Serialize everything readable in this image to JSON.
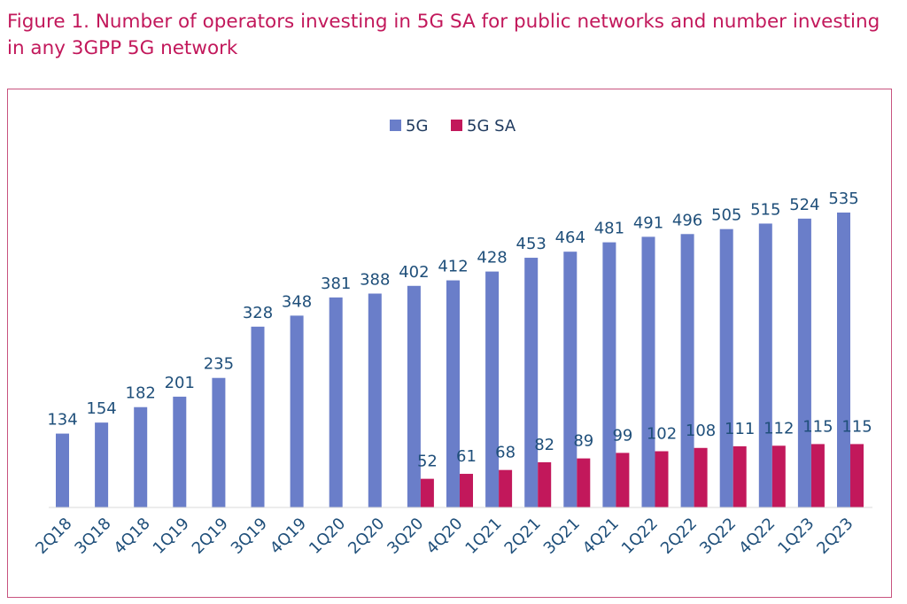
{
  "figure": {
    "title": "Figure 1. Number of operators investing in 5G SA for public networks and number investing in any 3GPP 5G network"
  },
  "chart_data": {
    "type": "bar",
    "categories": [
      "2Q18",
      "3Q18",
      "4Q18",
      "1Q19",
      "2Q19",
      "3Q19",
      "4Q19",
      "1Q20",
      "2Q20",
      "3Q20",
      "4Q20",
      "1Q21",
      "2Q21",
      "3Q21",
      "4Q21",
      "1Q22",
      "2Q22",
      "3Q22",
      "4Q22",
      "1Q23",
      "2Q23"
    ],
    "series": [
      {
        "name": "5G",
        "color": "#6a7ec9",
        "values": [
          134,
          154,
          182,
          201,
          235,
          328,
          348,
          381,
          388,
          402,
          412,
          428,
          453,
          464,
          481,
          491,
          496,
          505,
          515,
          524,
          535
        ]
      },
      {
        "name": "5G SA",
        "color": "#c2185b",
        "values": [
          null,
          null,
          null,
          null,
          null,
          null,
          null,
          null,
          null,
          52,
          61,
          68,
          82,
          89,
          99,
          102,
          108,
          111,
          112,
          115,
          115
        ]
      }
    ],
    "ylim": [
      0,
      560
    ],
    "grid": false,
    "legend_position": "top-center",
    "data_labels": true,
    "axis_label_color": "#1f4f7a"
  }
}
